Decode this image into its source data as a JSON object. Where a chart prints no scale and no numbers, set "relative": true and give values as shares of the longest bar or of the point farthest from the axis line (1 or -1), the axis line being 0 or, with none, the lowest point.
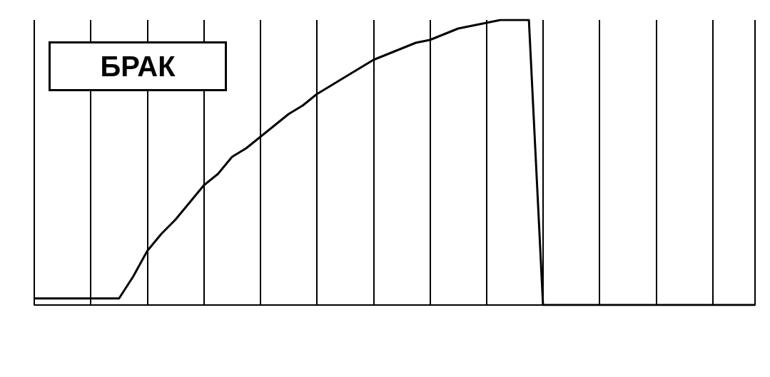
{
  "chart_data": {
    "type": "line",
    "relative": true,
    "marker": "none",
    "grid": "x",
    "annotations": [
      "БРАК"
    ],
    "categories": [
      null,
      null,
      null,
      null,
      null,
      null,
      null,
      null,
      null,
      null,
      null,
      null,
      null,
      null,
      null,
      null,
      null,
      null,
      null,
      null,
      null,
      null,
      null,
      null,
      null,
      null,
      null,
      null,
      null,
      null,
      null,
      null,
      null,
      null,
      null,
      null,
      null,
      null,
      null,
      null,
      null,
      null,
      null,
      null,
      null,
      null,
      null,
      null,
      null,
      null,
      null,
      null
    ],
    "series": [
      {
        "color": "#000000",
        "values": [
          0.023,
          0.023,
          0.023,
          0.023,
          0.023,
          0.023,
          0.023,
          0.1,
          0.19,
          0.25,
          0.3,
          0.36,
          0.42,
          0.46,
          0.52,
          0.55,
          0.59,
          0.63,
          0.67,
          0.7,
          0.74,
          0.77,
          0.8,
          0.83,
          0.86,
          0.88,
          0.9,
          0.92,
          0.93,
          0.95,
          0.97,
          0.98,
          0.99,
          1,
          1,
          1,
          0,
          0,
          0,
          0,
          0,
          0,
          0,
          0,
          0,
          0,
          0,
          0,
          0,
          0,
          0,
          0
        ]
      }
    ]
  }
}
